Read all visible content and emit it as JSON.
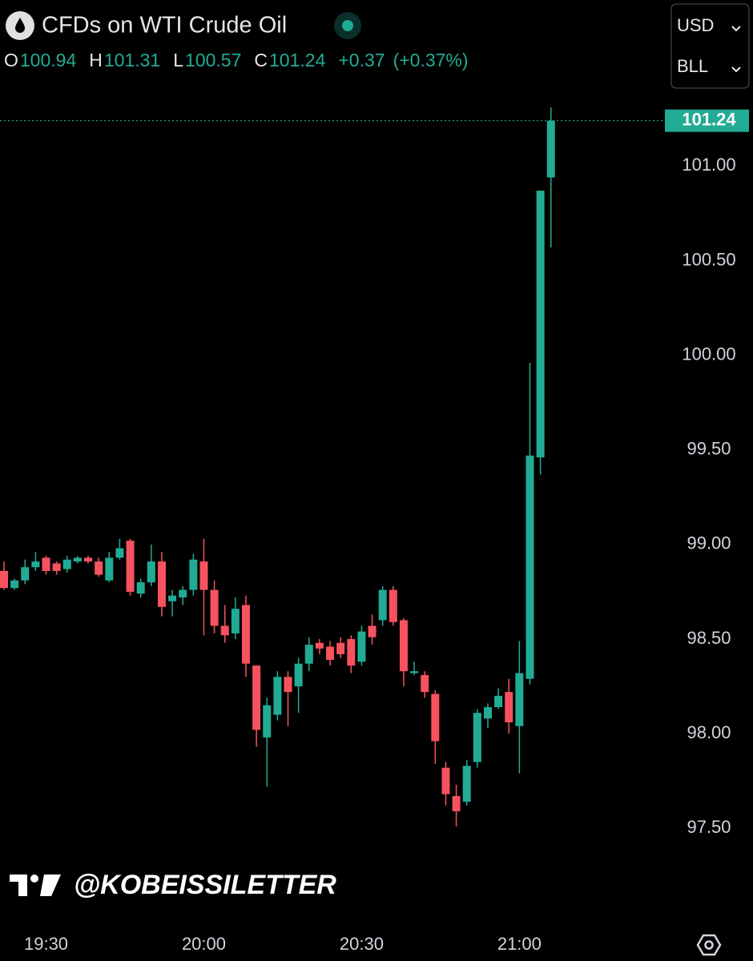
{
  "header": {
    "title": "CFDs on WTI Crude Oil",
    "currency": "USD",
    "unit": "BLL",
    "ohlc": [
      {
        "label": "O",
        "value": 100.94
      },
      {
        "label": "H",
        "value": 101.31
      },
      {
        "label": "L",
        "value": 100.57
      },
      {
        "label": "C",
        "value": 101.24
      }
    ],
    "change": "+0.37",
    "change_percent": "(+0.37%)",
    "watermark": "@KOBEISSILETTER"
  },
  "chart_data": {
    "type": "candlestick",
    "x": [
      "19:22",
      "19:24",
      "19:26",
      "19:28",
      "19:30",
      "19:32",
      "19:34",
      "19:36",
      "19:38",
      "19:40",
      "19:42",
      "19:44",
      "19:46",
      "19:48",
      "19:50",
      "19:52",
      "19:54",
      "19:56",
      "19:58",
      "20:00",
      "20:02",
      "20:04",
      "20:06",
      "20:08",
      "20:10",
      "20:12",
      "20:14",
      "20:16",
      "20:18",
      "20:20",
      "20:22",
      "20:24",
      "20:26",
      "20:28",
      "20:30",
      "20:32",
      "20:34",
      "20:36",
      "20:38",
      "20:40",
      "20:42",
      "20:44",
      "20:46",
      "20:48",
      "20:50",
      "20:52",
      "20:54",
      "20:56",
      "20:58",
      "21:00",
      "21:02",
      "21:04",
      "21:06"
    ],
    "open": [
      98.86,
      98.77,
      98.81,
      98.88,
      98.93,
      98.9,
      98.87,
      98.91,
      98.93,
      98.91,
      98.81,
      98.93,
      99.02,
      98.74,
      98.8,
      98.91,
      98.7,
      98.72,
      98.76,
      98.91,
      98.76,
      98.57,
      98.53,
      98.68,
      98.36,
      97.98,
      98.1,
      98.3,
      98.25,
      98.37,
      98.48,
      98.46,
      98.48,
      98.5,
      98.38,
      98.57,
      98.6,
      98.76,
      98.6,
      98.32,
      98.31,
      98.21,
      97.82,
      97.67,
      97.64,
      97.85,
      98.08,
      98.14,
      98.22,
      98.04,
      98.29,
      99.46,
      100.94
    ],
    "high": [
      98.91,
      98.82,
      98.92,
      98.96,
      98.94,
      98.91,
      98.94,
      98.94,
      98.94,
      98.93,
      98.96,
      99.03,
      99.03,
      98.82,
      99.0,
      98.96,
      98.76,
      98.78,
      98.95,
      99.03,
      98.81,
      98.68,
      98.72,
      98.73,
      98.36,
      98.19,
      98.33,
      98.33,
      98.4,
      98.51,
      98.5,
      98.49,
      98.51,
      98.52,
      98.57,
      98.63,
      98.78,
      98.78,
      98.61,
      98.38,
      98.33,
      98.23,
      97.85,
      97.73,
      97.86,
      98.13,
      98.16,
      98.24,
      98.29,
      98.49,
      99.96,
      100.87,
      101.31
    ],
    "low": [
      98.76,
      98.76,
      98.79,
      98.86,
      98.84,
      98.84,
      98.85,
      98.9,
      98.9,
      98.83,
      98.8,
      98.92,
      98.73,
      98.72,
      98.78,
      98.62,
      98.62,
      98.68,
      98.73,
      98.52,
      98.53,
      98.48,
      98.5,
      98.3,
      97.93,
      97.72,
      98.07,
      98.04,
      98.11,
      98.33,
      98.42,
      98.36,
      98.4,
      98.32,
      98.36,
      98.47,
      98.57,
      98.57,
      98.25,
      98.31,
      98.19,
      97.84,
      97.62,
      97.51,
      97.62,
      97.82,
      98.03,
      98.13,
      98.0,
      97.79,
      98.26,
      99.37,
      100.57
    ],
    "close": [
      98.77,
      98.81,
      98.88,
      98.91,
      98.86,
      98.86,
      98.92,
      98.93,
      98.91,
      98.84,
      98.93,
      98.98,
      98.75,
      98.8,
      98.91,
      98.67,
      98.73,
      98.76,
      98.92,
      98.76,
      98.57,
      98.52,
      98.66,
      98.37,
      98.02,
      98.15,
      98.3,
      98.22,
      98.37,
      98.47,
      98.45,
      98.39,
      98.42,
      98.36,
      98.54,
      98.51,
      98.76,
      98.59,
      98.33,
      98.33,
      98.22,
      97.96,
      97.68,
      97.59,
      97.83,
      98.11,
      98.14,
      98.2,
      98.06,
      98.32,
      99.47,
      100.87,
      101.24
    ],
    "up_color": "#22ab94",
    "down_color": "#f7525f",
    "last_price": 101.24,
    "ylim": [
      97.01,
      101.37
    ],
    "yticks": [
      {
        "value": 97.5,
        "label": "97.50"
      },
      {
        "value": 98,
        "label": "98.00"
      },
      {
        "value": 98.5,
        "label": "98.50"
      },
      {
        "value": 99,
        "label": "99.00"
      },
      {
        "value": 99.5,
        "label": "99.50"
      },
      {
        "value": 100,
        "label": "100.00"
      },
      {
        "value": 100.5,
        "label": "100.50"
      },
      {
        "value": 101,
        "label": "101.00"
      }
    ],
    "xticks": [
      "19:30",
      "20:00",
      "20:30",
      "21:00"
    ]
  }
}
